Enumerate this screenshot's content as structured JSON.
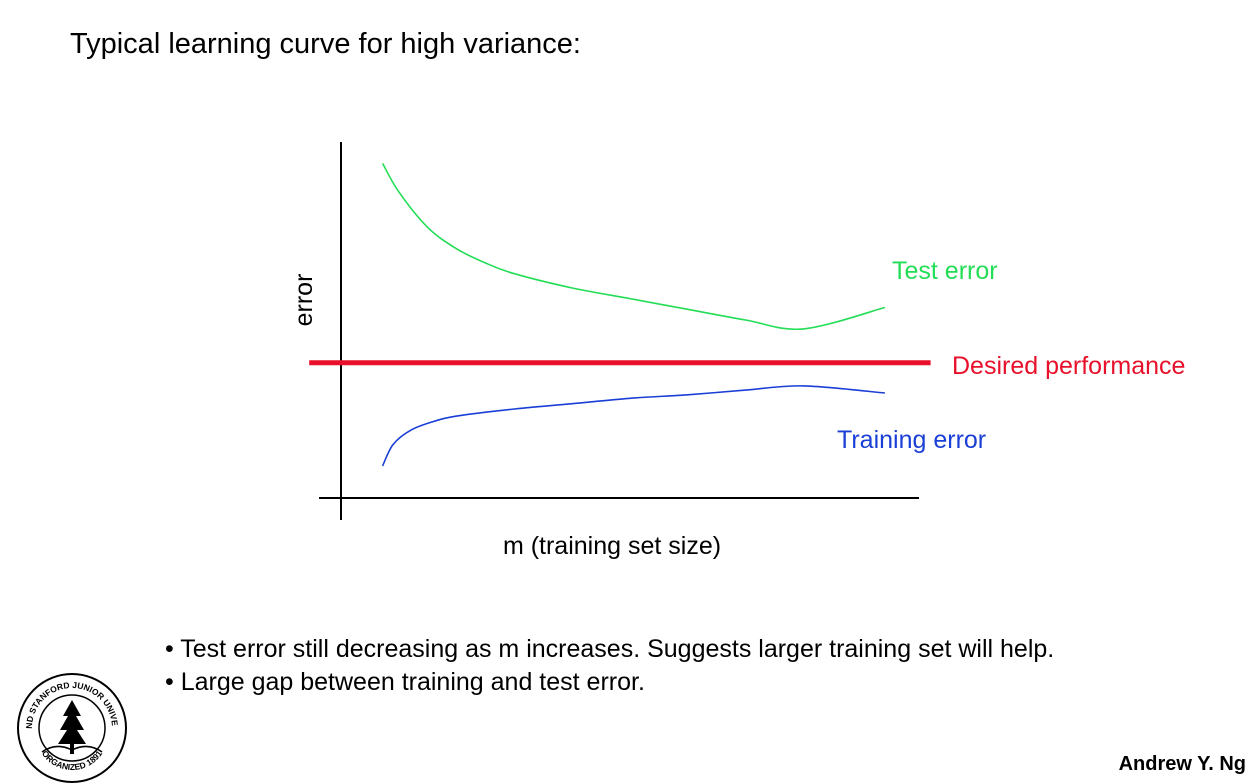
{
  "slide": {
    "title": "Typical learning curve for high variance:",
    "bullets": [
      "• Test error still decreasing as m increases.  Suggests larger training set will help.",
      "• Large gap between training and test error."
    ],
    "author": "Andrew Y. Ng",
    "logo": {
      "icon": "stanford-seal-icon",
      "text_top": "LELAND STANFORD JUNIOR UNIVERSITY",
      "text_bottom": "ORGANIZED 1891"
    }
  },
  "chart_data": {
    "type": "line",
    "xlabel": "m (training set size)",
    "ylabel": "error",
    "xlim": [
      0,
      100
    ],
    "ylim": [
      0,
      100
    ],
    "grid": false,
    "legend": "inline labels at right",
    "series": [
      {
        "name": "Test error",
        "color": "#22dd55",
        "x": [
          7.2,
          10,
          15,
          20,
          25,
          30,
          40,
          50,
          60,
          70,
          80,
          94.1
        ],
        "y": [
          94,
          86,
          76,
          70,
          66,
          63,
          59,
          56,
          53,
          50,
          47.5,
          53.5
        ]
      },
      {
        "name": "Training error",
        "color": "#1a3fd6",
        "x": [
          7.2,
          9,
          12,
          16,
          20,
          30,
          40,
          50,
          60,
          70,
          80,
          94.1
        ],
        "y": [
          9,
          15,
          19,
          21.5,
          23,
          25,
          26.5,
          28,
          29,
          30.3,
          31.5,
          29.5
        ]
      },
      {
        "name": "Desired performance",
        "color": "#e8102a",
        "x": [
          -5.5,
          102
        ],
        "y": [
          38,
          38
        ]
      }
    ]
  }
}
